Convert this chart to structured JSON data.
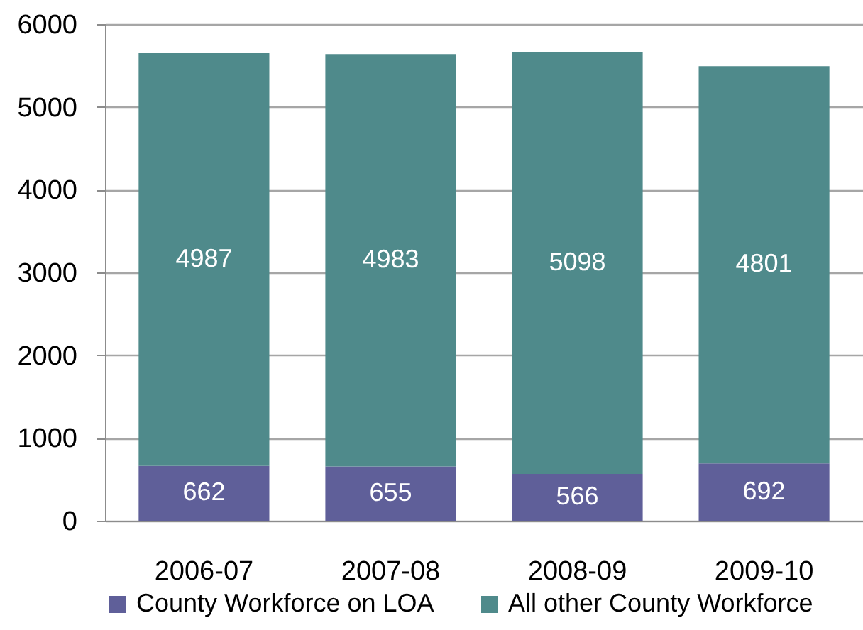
{
  "chart_data": {
    "type": "bar",
    "stacked": true,
    "categories": [
      "2006-07",
      "2007-08",
      "2008-09",
      "2009-10"
    ],
    "series": [
      {
        "name": "County Workforce on LOA",
        "color": "#5f5f99",
        "values": [
          662,
          655,
          566,
          692
        ]
      },
      {
        "name": "All other County Workforce",
        "color": "#4f8a8b",
        "values": [
          4987,
          4983,
          5098,
          4801
        ]
      }
    ],
    "ylim": [
      0,
      6000
    ],
    "yticks": [
      0,
      1000,
      2000,
      3000,
      4000,
      5000,
      6000
    ],
    "grid": "y",
    "legend": "bottom",
    "data_labels": true
  }
}
